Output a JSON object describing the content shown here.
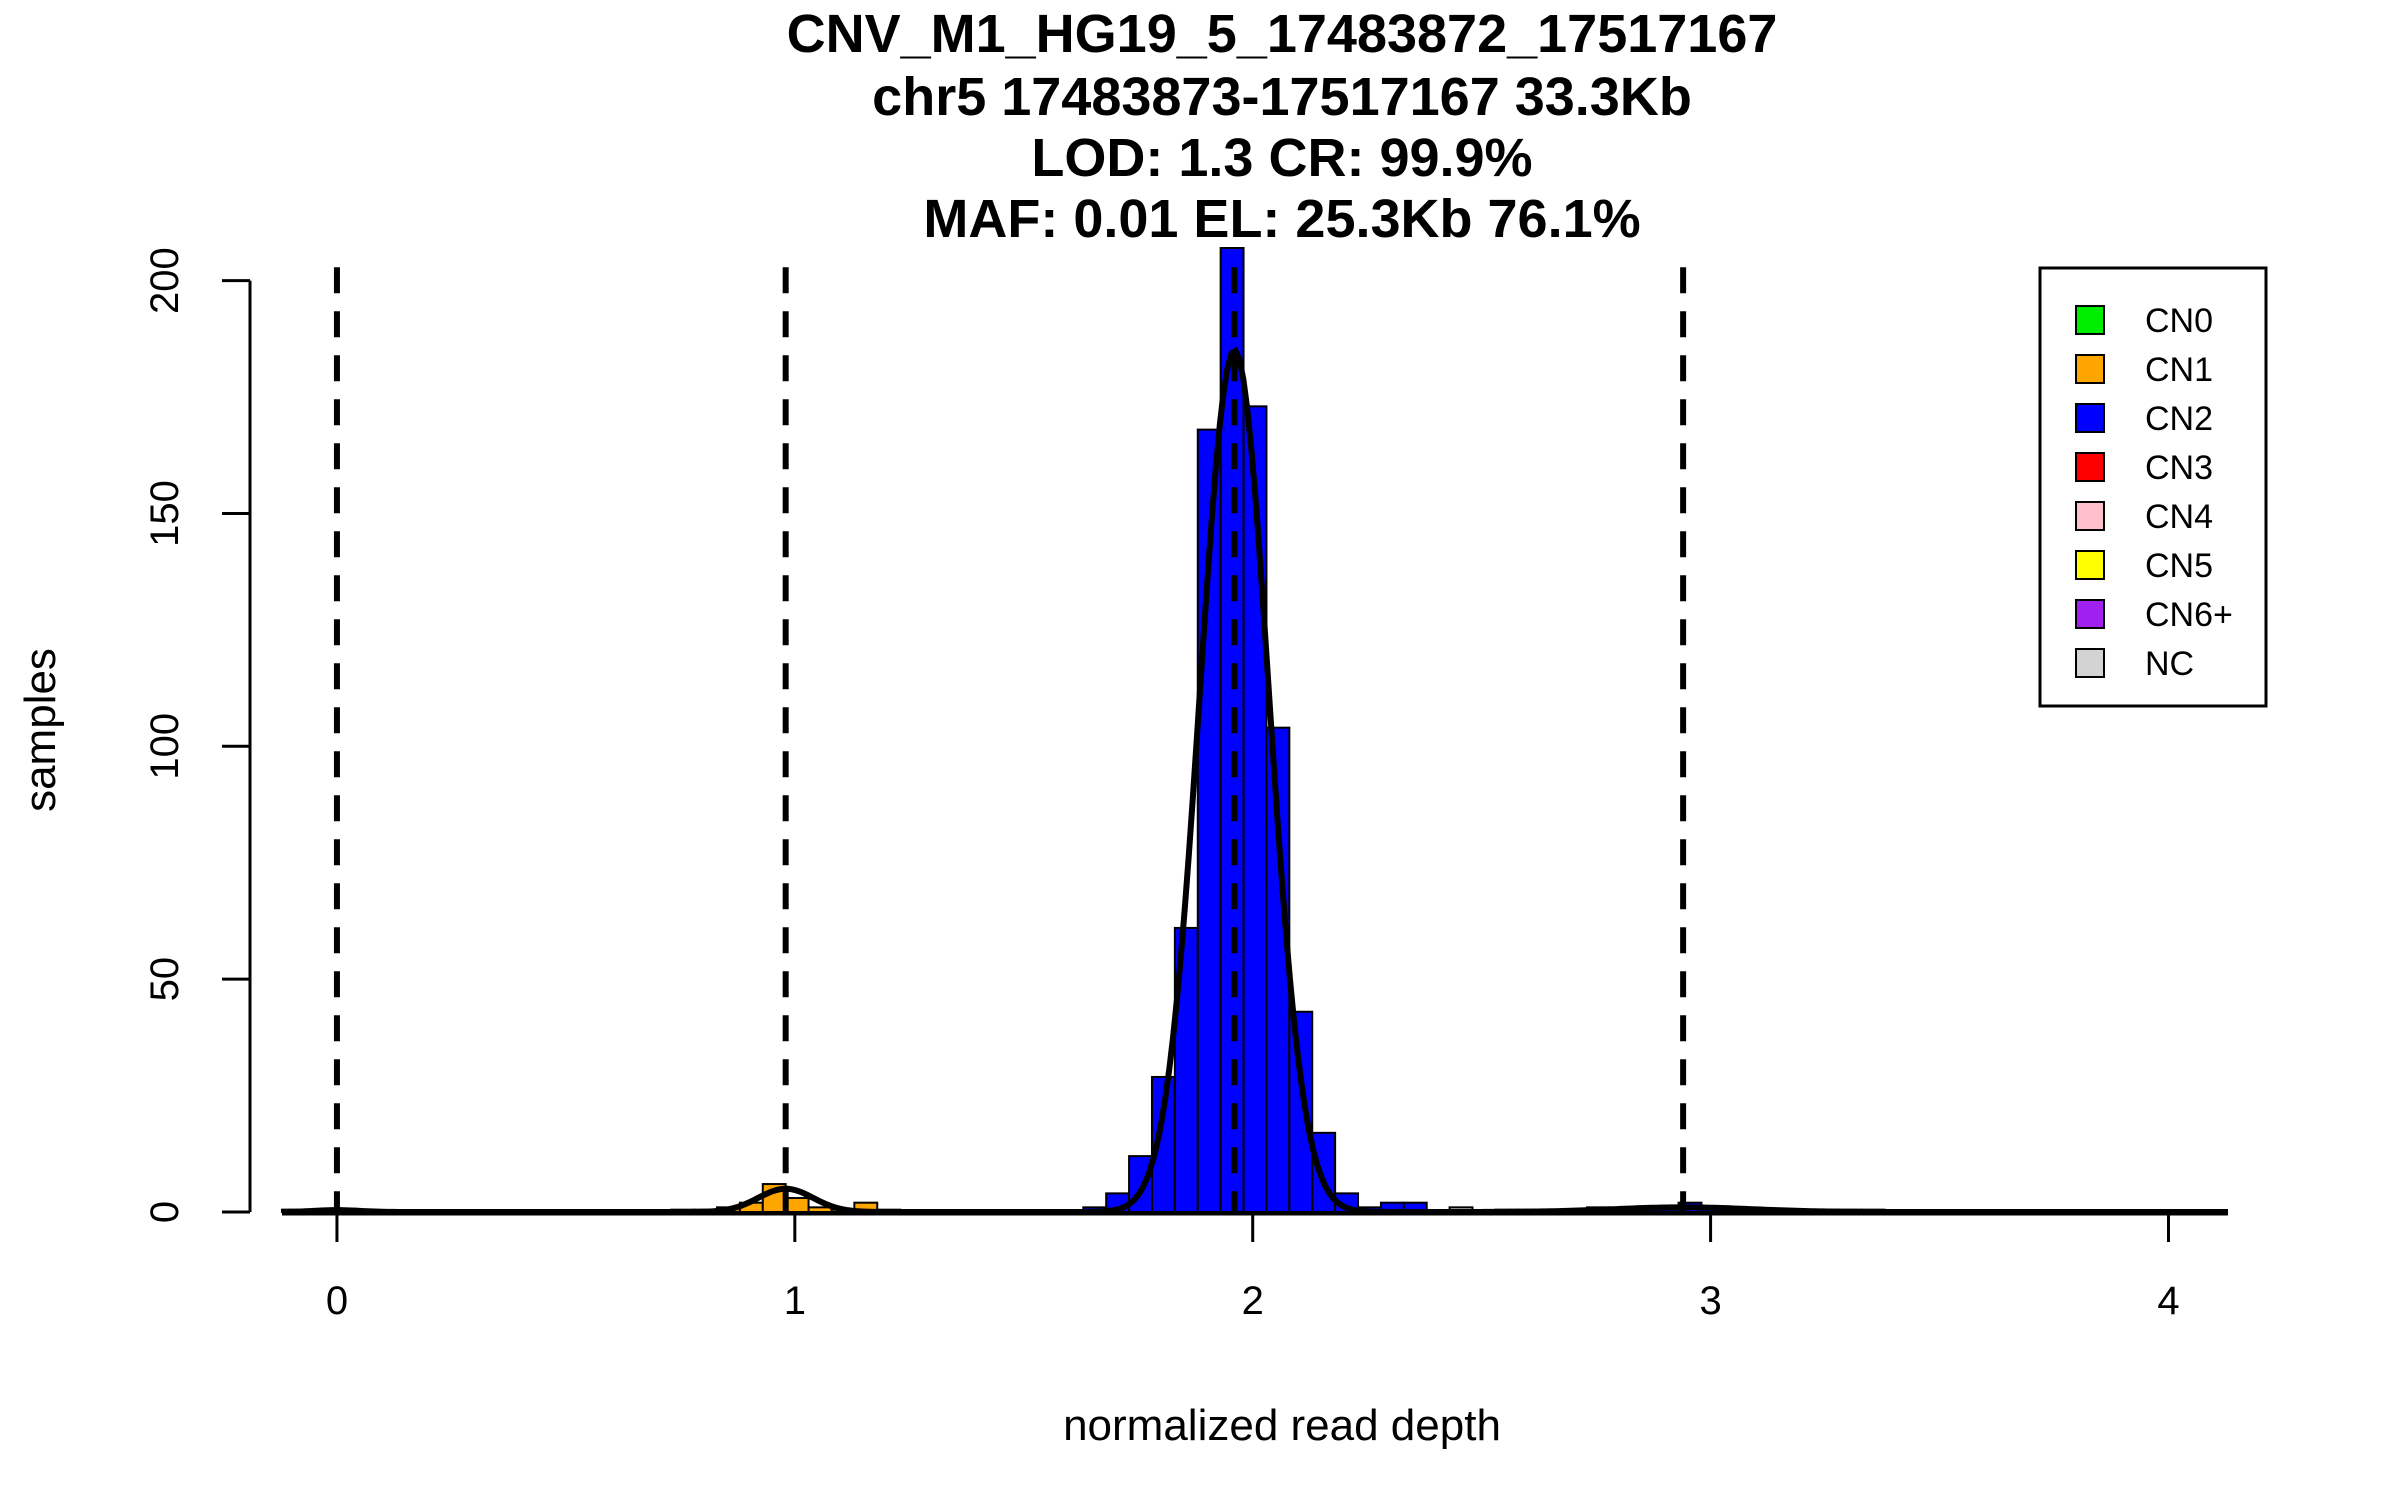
{
  "chart_data": {
    "type": "bar",
    "title_lines": [
      "CNV_M1_HG19_5_17483872_17517167",
      "chr5 17483873-17517167 33.3Kb",
      "LOD: 1.3 CR: 99.9%",
      "MAF: 0.01 EL: 25.3Kb 76.1%"
    ],
    "xlabel": "normalized read depth",
    "ylabel": "samples",
    "xlim": [
      -0.12,
      4.13
    ],
    "ylim": [
      0,
      207
    ],
    "x_ticks": [
      0,
      1,
      2,
      3,
      4
    ],
    "y_ticks": [
      0,
      50,
      100,
      150,
      200
    ],
    "bin_width": 0.05,
    "bins": [
      {
        "x0": -0.12,
        "count": 0.5,
        "cn": "CN2"
      },
      {
        "x0": -0.07,
        "count": 0.5,
        "cn": "CN2"
      },
      {
        "x0": 0.03,
        "count": 0.5,
        "cn": "CN2"
      },
      {
        "x0": 0.73,
        "count": 0.5,
        "cn": "CN1"
      },
      {
        "x0": 0.78,
        "count": 0.5,
        "cn": "CN1"
      },
      {
        "x0": 0.83,
        "count": 1,
        "cn": "CN1"
      },
      {
        "x0": 0.88,
        "count": 2,
        "cn": "CN1"
      },
      {
        "x0": 0.93,
        "count": 6,
        "cn": "CN1"
      },
      {
        "x0": 0.98,
        "count": 3,
        "cn": "CN1"
      },
      {
        "x0": 1.03,
        "count": 1,
        "cn": "CN1"
      },
      {
        "x0": 1.08,
        "count": 0.5,
        "cn": "CN1"
      },
      {
        "x0": 1.13,
        "count": 2,
        "cn": "CN1"
      },
      {
        "x0": 1.18,
        "count": 0.5,
        "cn": "CN1"
      },
      {
        "x0": 1.63,
        "count": 1,
        "cn": "CN2"
      },
      {
        "x0": 1.68,
        "count": 4,
        "cn": "CN2"
      },
      {
        "x0": 1.73,
        "count": 12,
        "cn": "CN2"
      },
      {
        "x0": 1.78,
        "count": 29,
        "cn": "CN2"
      },
      {
        "x0": 1.83,
        "count": 61,
        "cn": "CN2"
      },
      {
        "x0": 1.88,
        "count": 168,
        "cn": "CN2"
      },
      {
        "x0": 1.93,
        "count": 207,
        "cn": "CN2"
      },
      {
        "x0": 1.98,
        "count": 173,
        "cn": "CN2"
      },
      {
        "x0": 2.03,
        "count": 104,
        "cn": "CN2"
      },
      {
        "x0": 2.08,
        "count": 43,
        "cn": "CN2"
      },
      {
        "x0": 2.13,
        "count": 17,
        "cn": "CN2"
      },
      {
        "x0": 2.18,
        "count": 4,
        "cn": "CN2"
      },
      {
        "x0": 2.23,
        "count": 1,
        "cn": "CN2"
      },
      {
        "x0": 2.28,
        "count": 2,
        "cn": "CN2"
      },
      {
        "x0": 2.33,
        "count": 2,
        "cn": "CN2"
      },
      {
        "x0": 2.43,
        "count": 1,
        "cn": "NC"
      },
      {
        "x0": 2.53,
        "count": 0.5,
        "cn": "CN2"
      },
      {
        "x0": 2.58,
        "count": 0.5,
        "cn": "CN2"
      },
      {
        "x0": 2.63,
        "count": 0.5,
        "cn": "CN2"
      },
      {
        "x0": 2.68,
        "count": 0.5,
        "cn": "CN2"
      },
      {
        "x0": 2.73,
        "count": 1,
        "cn": "CN2"
      },
      {
        "x0": 2.78,
        "count": 0.5,
        "cn": "CN2"
      },
      {
        "x0": 2.83,
        "count": 0.5,
        "cn": "CN2"
      },
      {
        "x0": 2.88,
        "count": 0.5,
        "cn": "CN2"
      },
      {
        "x0": 2.93,
        "count": 2,
        "cn": "CN2"
      },
      {
        "x0": 2.98,
        "count": 0.5,
        "cn": "CN2"
      },
      {
        "x0": 3.03,
        "count": 0.5,
        "cn": "CN2"
      },
      {
        "x0": 3.08,
        "count": 0.5,
        "cn": "CN2"
      },
      {
        "x0": 3.13,
        "count": 0.5,
        "cn": "CN2"
      },
      {
        "x0": 3.18,
        "count": 0.5,
        "cn": "CN2"
      },
      {
        "x0": 3.23,
        "count": 0.5,
        "cn": "CN2"
      },
      {
        "x0": 3.28,
        "count": 0.5,
        "cn": "CN2"
      },
      {
        "x0": 3.33,
        "count": 0.5,
        "cn": "CN2"
      }
    ],
    "dashed_lines_x": [
      0,
      0.98,
      1.96,
      2.94
    ],
    "density_curves": [
      {
        "mean": 1.96,
        "sd": 0.075,
        "amplitude": 185
      },
      {
        "mean": 0.98,
        "sd": 0.06,
        "amplitude": 5
      },
      {
        "mean": 0.0,
        "sd": 0.05,
        "amplitude": 0.4
      },
      {
        "mean": 2.94,
        "sd": 0.15,
        "amplitude": 1
      }
    ],
    "legend": {
      "position": "top-right",
      "entries": [
        {
          "label": "CN0",
          "color": "#00ee00"
        },
        {
          "label": "CN1",
          "color": "#ffa500"
        },
        {
          "label": "CN2",
          "color": "#0000ff"
        },
        {
          "label": "CN3",
          "color": "#ff0000"
        },
        {
          "label": "CN4",
          "color": "#ffc0cb"
        },
        {
          "label": "CN5",
          "color": "#ffff00"
        },
        {
          "label": "CN6+",
          "color": "#a020f0"
        },
        {
          "label": "NC",
          "color": "#d3d3d3"
        }
      ]
    }
  }
}
